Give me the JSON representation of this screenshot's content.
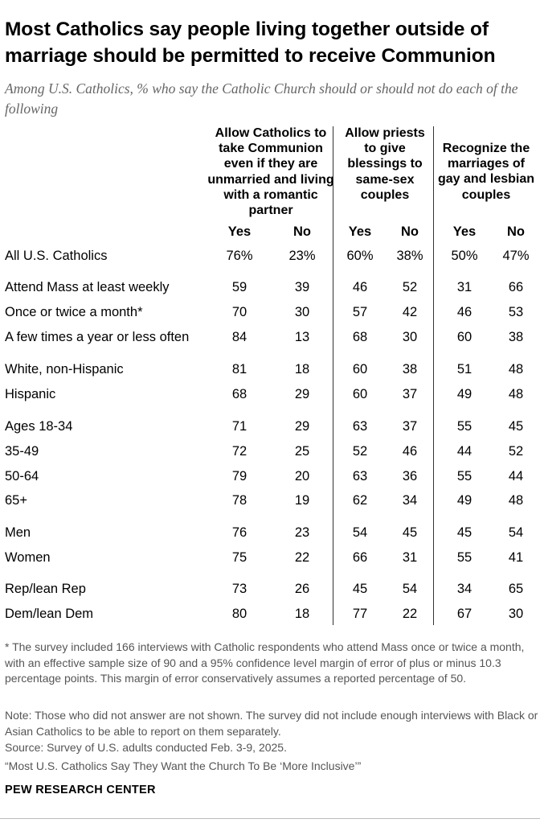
{
  "title": "Most Catholics say people living together outside of marriage should be permitted to receive Communion",
  "subtitle": "Among U.S. Catholics, % who say the Catholic Church should or should not do each of the following",
  "chart_data": {
    "type": "table",
    "columns": [
      {
        "header": "Allow Catholics to take Communion even if they are unmarried and living with a romantic partner",
        "sub": [
          "Yes",
          "No"
        ]
      },
      {
        "header": "Allow priests to give blessings to same-sex couples",
        "sub": [
          "Yes",
          "No"
        ]
      },
      {
        "header": "Recognize the marriages of gay and lesbian couples",
        "sub": [
          "Yes",
          "No"
        ]
      }
    ],
    "rows": [
      {
        "label": "All U.S. Catholics",
        "values": [
          "76%",
          "23%",
          "60%",
          "38%",
          "50%",
          "47%"
        ]
      },
      {
        "label": "Attend Mass at least weekly",
        "values": [
          "59",
          "39",
          "46",
          "52",
          "31",
          "66"
        ]
      },
      {
        "label": "Once or twice a month*",
        "values": [
          "70",
          "30",
          "57",
          "42",
          "46",
          "53"
        ]
      },
      {
        "label": "A few times a year or less often",
        "values": [
          "84",
          "13",
          "68",
          "30",
          "60",
          "38"
        ]
      },
      {
        "label": "White, non-Hispanic",
        "values": [
          "81",
          "18",
          "60",
          "38",
          "51",
          "48"
        ]
      },
      {
        "label": "Hispanic",
        "values": [
          "68",
          "29",
          "60",
          "37",
          "49",
          "48"
        ]
      },
      {
        "label": "Ages 18-34",
        "values": [
          "71",
          "29",
          "63",
          "37",
          "55",
          "45"
        ]
      },
      {
        "label": "35-49",
        "values": [
          "72",
          "25",
          "52",
          "46",
          "44",
          "52"
        ]
      },
      {
        "label": "50-64",
        "values": [
          "79",
          "20",
          "63",
          "36",
          "55",
          "44"
        ]
      },
      {
        "label": "65+",
        "values": [
          "78",
          "19",
          "62",
          "34",
          "49",
          "48"
        ]
      },
      {
        "label": "Men",
        "values": [
          "76",
          "23",
          "54",
          "45",
          "45",
          "54"
        ]
      },
      {
        "label": "Women",
        "values": [
          "75",
          "22",
          "66",
          "31",
          "55",
          "41"
        ]
      },
      {
        "label": "Rep/lean Rep",
        "values": [
          "73",
          "26",
          "45",
          "54",
          "34",
          "65"
        ]
      },
      {
        "label": "Dem/lean Dem",
        "values": [
          "80",
          "18",
          "77",
          "22",
          "67",
          "30"
        ]
      }
    ]
  },
  "footnotes": {
    "star": "* The survey included 166 interviews with Catholic respondents who attend Mass once or twice a month, with an effective sample size of 90 and a 95% confidence level margin of error of plus or minus 10.3 percentage points. This margin of error conservatively assumes a reported percentage of 50.",
    "note": "Note: Those who did not answer are not shown. The survey did not include enough interviews with Black or Asian Catholics to be able to report on them separately.",
    "source": "Source: Survey of U.S. adults conducted Feb. 3-9, 2025.",
    "report": "“Most U.S. Catholics Say They Want the Church To Be ‘More Inclusive’”"
  },
  "logo": "PEW RESEARCH CENTER"
}
